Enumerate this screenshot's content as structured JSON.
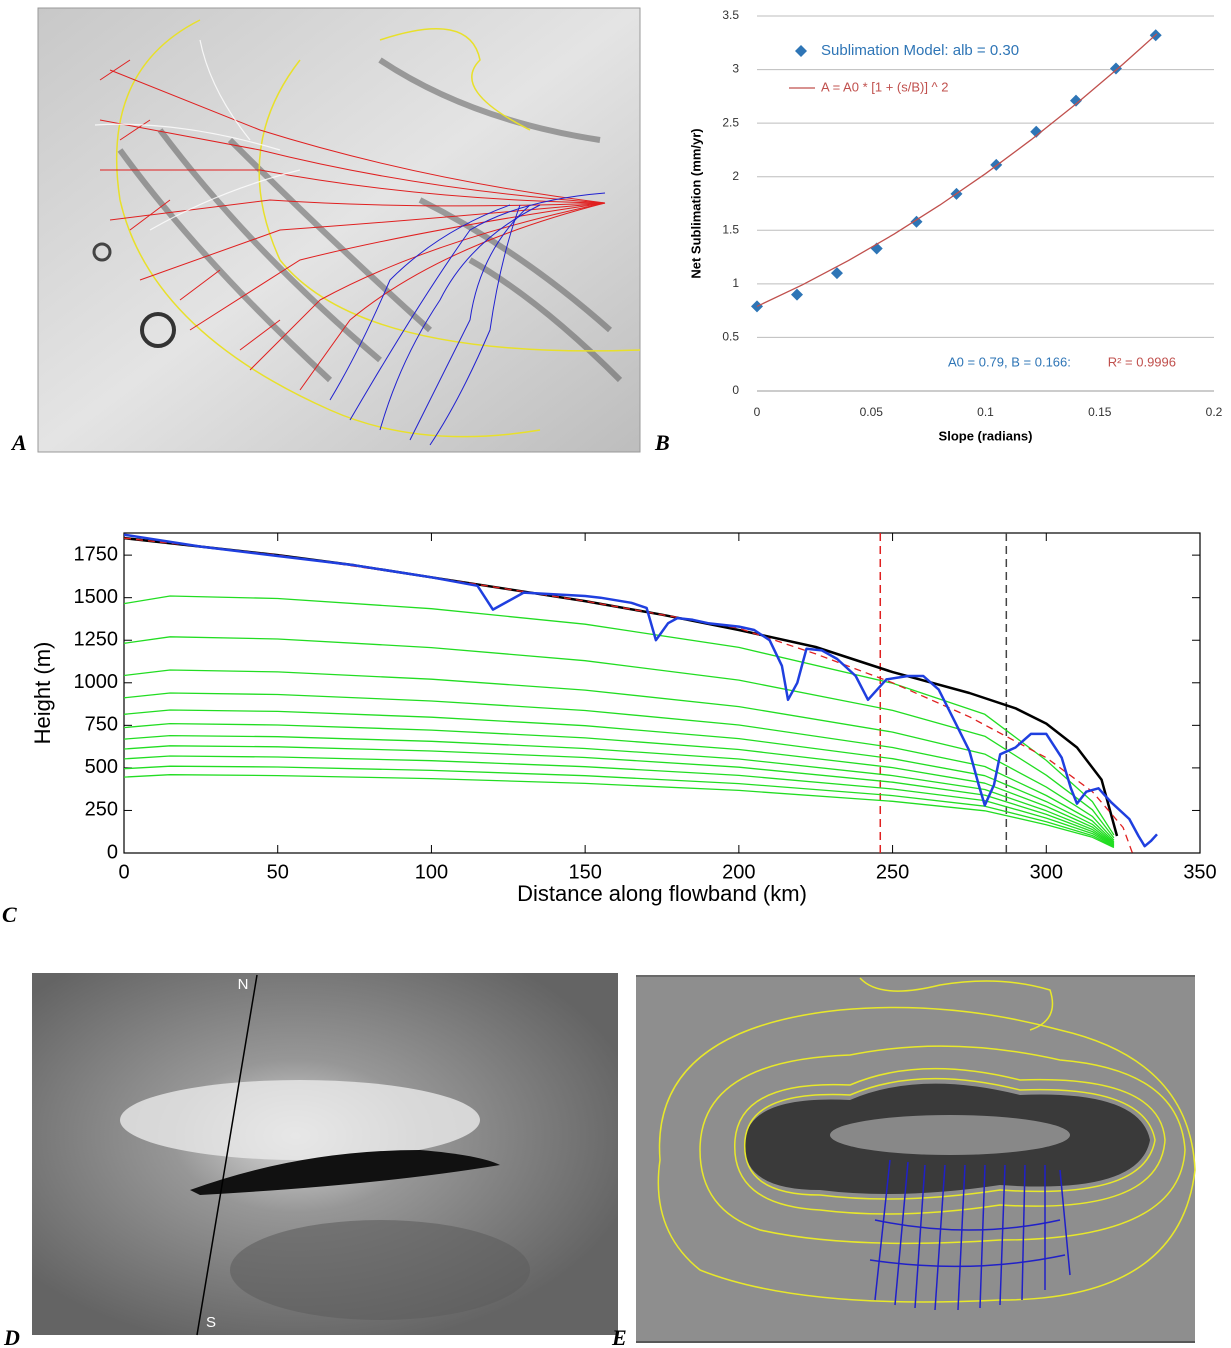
{
  "panel_labels": [
    "A",
    "B",
    "C",
    "D",
    "E"
  ],
  "compass_labels": [
    "N",
    "S"
  ],
  "chart_data": [
    {
      "type": "scatter",
      "x_label": "Slope (radians)",
      "y_label": "Net Sublimation (mm/yr)",
      "xlim": [
        0,
        0.2
      ],
      "ylim": [
        0,
        3.5
      ],
      "xticks": [
        0,
        0.05,
        0.1,
        0.15,
        0.2
      ],
      "yticks": [
        0,
        0.5,
        1,
        1.5,
        2,
        2.5,
        3,
        3.5
      ],
      "grid": true,
      "legend": "upper left",
      "series": [
        {
          "name": "Sublimation Model: alb = 0.30",
          "color": "#2e75b6",
          "marker": "diamond",
          "x": [
            0,
            0.0175,
            0.035,
            0.0524,
            0.0698,
            0.0873,
            0.1047,
            0.1222,
            0.1396,
            0.1571,
            0.1745
          ],
          "values": [
            0.79,
            0.9,
            1.1,
            1.33,
            1.58,
            1.84,
            2.11,
            2.42,
            2.71,
            3.01,
            3.32
          ]
        },
        {
          "name": "A = A0 * [1 + (s/B)] ^ 2",
          "color": "#c0504d",
          "x": [
            0,
            0.02,
            0.04,
            0.06,
            0.08,
            0.1,
            0.12,
            0.14,
            0.16,
            0.175
          ],
          "values": [
            0.79,
            0.992,
            1.217,
            1.464,
            1.735,
            2.028,
            2.345,
            2.685,
            3.047,
            3.334
          ]
        }
      ],
      "annotations": [
        {
          "text": "A0 = 0.79, B = 0.166:",
          "color": "#2e75b6"
        },
        {
          "text": "R² = 0.9996",
          "color": "#c0504d"
        }
      ]
    },
    {
      "type": "line",
      "x_label": "Distance along flowband (km)",
      "y_label": "Height (m)",
      "xlim": [
        0,
        350
      ],
      "ylim": [
        0,
        1880
      ],
      "xticks": [
        0,
        50,
        100,
        150,
        200,
        250,
        300,
        350
      ],
      "yticks": [
        0,
        250,
        500,
        750,
        1000,
        1250,
        1500,
        1750
      ],
      "grid": false,
      "frame": true,
      "vlines": [
        {
          "x": 246,
          "color": "#e02020"
        },
        {
          "x": 287,
          "color": "#444444"
        }
      ],
      "series": [
        {
          "color": "#22dd22",
          "x": [
            0,
            15,
            50,
            100,
            150,
            200,
            250,
            280,
            300,
            315,
            322
          ],
          "values": [
            1465,
            1510,
            1495,
            1435,
            1344,
            1208,
            997,
            815,
            544,
            302,
            106
          ]
        },
        {
          "color": "#22dd22",
          "x": [
            0,
            15,
            50,
            100,
            150,
            200,
            250,
            280,
            300,
            315,
            322
          ],
          "values": [
            1232,
            1270,
            1257,
            1207,
            1130,
            1016,
            838,
            686,
            457,
            254,
            89
          ]
        },
        {
          "color": "#22dd22",
          "x": [
            0,
            15,
            50,
            100,
            150,
            200,
            250,
            280,
            300,
            315,
            322
          ],
          "values": [
            1043,
            1075,
            1064,
            1021,
            957,
            860,
            710,
            581,
            387,
            215,
            75
          ]
        },
        {
          "color": "#22dd22",
          "x": [
            0,
            15,
            50,
            100,
            150,
            200,
            250,
            280,
            300,
            315,
            322
          ],
          "values": [
            912,
            940,
            931,
            893,
            837,
            752,
            620,
            508,
            338,
            188,
            66
          ]
        },
        {
          "color": "#22dd22",
          "x": [
            0,
            15,
            50,
            100,
            150,
            200,
            250,
            280,
            300,
            315,
            322
          ],
          "values": [
            815,
            840,
            832,
            798,
            748,
            672,
            554,
            454,
            302,
            168,
            59
          ]
        },
        {
          "color": "#22dd22",
          "x": [
            0,
            15,
            50,
            100,
            150,
            200,
            250,
            280,
            300,
            315,
            322
          ],
          "values": [
            737,
            760,
            752,
            722,
            676,
            608,
            502,
            410,
            274,
            152,
            53
          ]
        },
        {
          "color": "#22dd22",
          "x": [
            0,
            15,
            50,
            100,
            150,
            200,
            250,
            280,
            300,
            315,
            322
          ],
          "values": [
            669,
            690,
            683,
            656,
            614,
            552,
            455,
            373,
            248,
            138,
            48
          ]
        },
        {
          "color": "#22dd22",
          "x": [
            0,
            15,
            50,
            100,
            150,
            200,
            250,
            280,
            300,
            315,
            322
          ],
          "values": [
            611,
            630,
            624,
            599,
            561,
            504,
            416,
            340,
            227,
            126,
            44
          ]
        },
        {
          "color": "#22dd22",
          "x": [
            0,
            15,
            50,
            100,
            150,
            200,
            250,
            280,
            300,
            315,
            322
          ],
          "values": [
            553,
            570,
            564,
            542,
            507,
            456,
            376,
            308,
            205,
            114,
            40
          ]
        },
        {
          "color": "#22dd22",
          "x": [
            0,
            15,
            50,
            100,
            150,
            200,
            250,
            280,
            300,
            315,
            322
          ],
          "values": [
            495,
            510,
            505,
            485,
            454,
            408,
            337,
            275,
            184,
            102,
            36
          ]
        },
        {
          "color": "#22dd22",
          "x": [
            0,
            15,
            50,
            100,
            150,
            200,
            250,
            280,
            300,
            315,
            322
          ],
          "values": [
            446,
            460,
            455,
            437,
            409,
            368,
            304,
            248,
            166,
            92,
            32
          ]
        },
        {
          "color": "#000000",
          "width": 2.5,
          "x": [
            0,
            25,
            50,
            75,
            100,
            125,
            150,
            175,
            200,
            225,
            250,
            275,
            290,
            300,
            310,
            318,
            323
          ],
          "values": [
            1850,
            1800,
            1750,
            1690,
            1620,
            1550,
            1480,
            1400,
            1310,
            1210,
            1063,
            940,
            850,
            760,
            620,
            430,
            100
          ]
        },
        {
          "color": "#e02020",
          "linestyle": "dashed",
          "x": [
            0,
            50,
            100,
            150,
            200,
            225,
            250,
            275,
            300,
            315,
            325,
            328
          ],
          "values": [
            1850,
            1750,
            1620,
            1480,
            1320,
            1170,
            1000,
            800,
            560,
            360,
            150,
            0
          ]
        },
        {
          "color": "#1f3fdf",
          "width": 2.5,
          "x": [
            0,
            25,
            50,
            75,
            100,
            115,
            120,
            125,
            130,
            150,
            155,
            165,
            170,
            173,
            177,
            180,
            185,
            190,
            200,
            205,
            210,
            214,
            216,
            219,
            222,
            227,
            232,
            238,
            242,
            245,
            248,
            255,
            260,
            265,
            270,
            275,
            278,
            280,
            283,
            285,
            290,
            295,
            300,
            305,
            308,
            310,
            313,
            317,
            321,
            327,
            330,
            332,
            334,
            336
          ],
          "values": [
            1870,
            1800,
            1745,
            1690,
            1620,
            1570,
            1430,
            1480,
            1530,
            1510,
            1500,
            1470,
            1440,
            1250,
            1350,
            1380,
            1370,
            1350,
            1330,
            1310,
            1250,
            1100,
            900,
            1000,
            1200,
            1190,
            1140,
            1040,
            900,
            960,
            1020,
            1040,
            1040,
            960,
            780,
            600,
            400,
            280,
            400,
            580,
            620,
            700,
            700,
            560,
            380,
            290,
            360,
            380,
            300,
            200,
            100,
            40,
            70,
            110
          ]
        }
      ]
    }
  ]
}
